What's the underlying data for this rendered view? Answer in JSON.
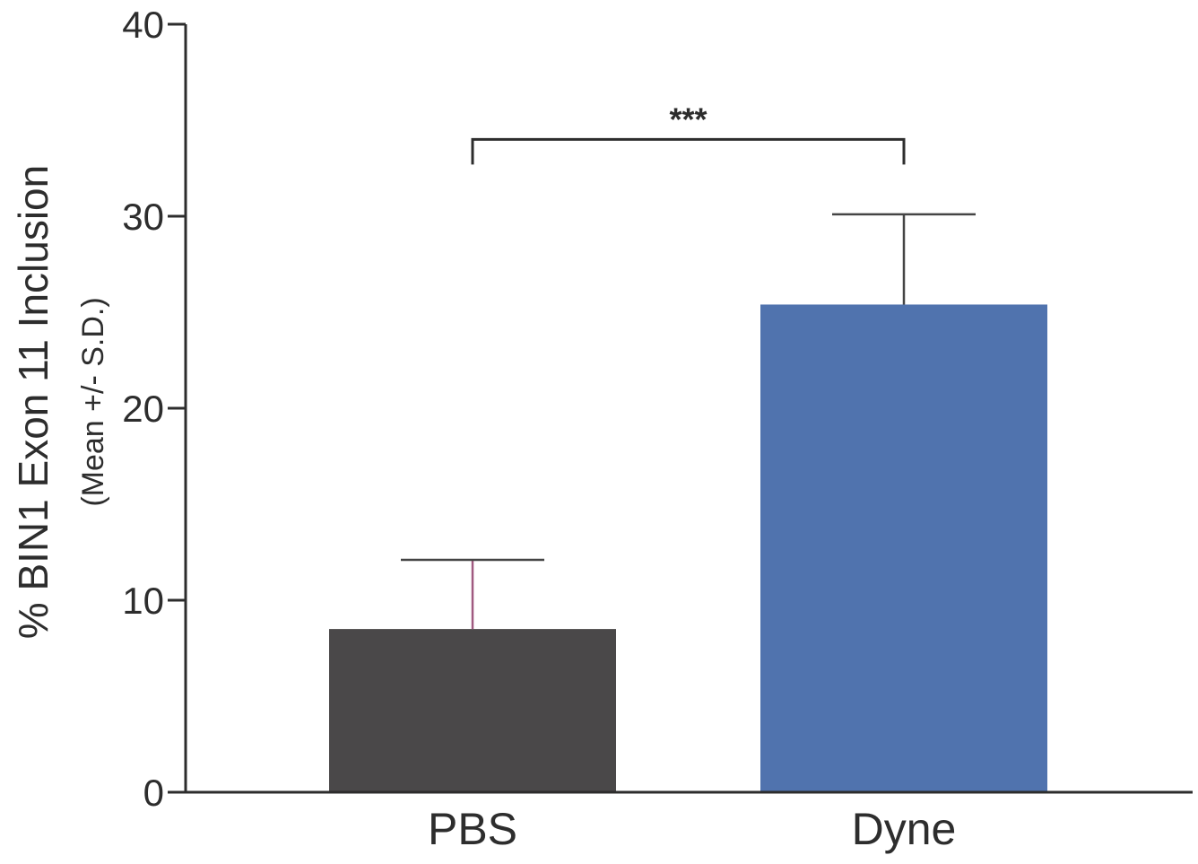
{
  "chart_data": {
    "type": "bar",
    "categories": [
      "PBS",
      "Dyne"
    ],
    "values": [
      8.5,
      25.4
    ],
    "error_sd": [
      3.6,
      4.7
    ],
    "bar_colors": [
      "#4a4849",
      "#5073ae"
    ],
    "error_colors": [
      "#a05a80",
      "#444444"
    ],
    "axis_color": "#2d2d2d",
    "ylabel": "% BIN1 Exon 11 Inclusion",
    "ylabel_sub": "(Mean +/- S.D.)",
    "ylim": [
      0,
      40
    ],
    "yticks": [
      0,
      10,
      20,
      30,
      40
    ],
    "grid": false,
    "significance": {
      "label": "***",
      "between": [
        "PBS",
        "Dyne"
      ],
      "at_value": 34
    }
  }
}
